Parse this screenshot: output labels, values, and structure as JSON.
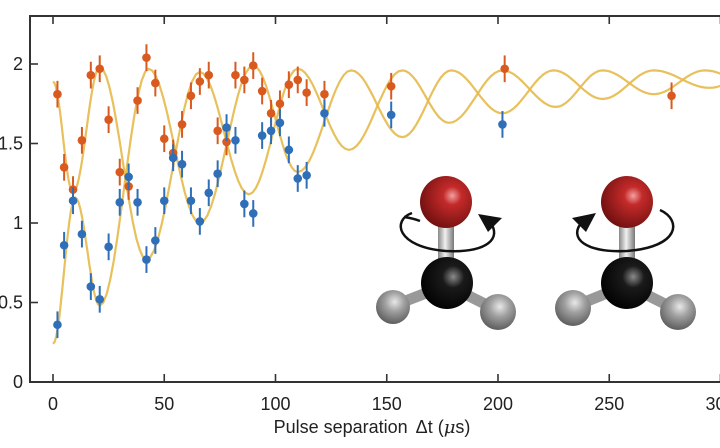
{
  "chart_data": {
    "type": "scatter",
    "title": "",
    "xlabel_main": "Pulse separation",
    "xlabel_symbol": "Δt (",
    "xlabel_mu": "μ",
    "xlabel_unit": "s)",
    "ylabel": "",
    "xlim": [
      -10,
      300
    ],
    "ylim": [
      0,
      2.3
    ],
    "grid": false,
    "xticks": [
      0,
      50,
      100,
      150,
      200,
      250,
      300
    ],
    "xtick_labels": [
      "0",
      "50",
      "100",
      "150",
      "200",
      "250",
      "300"
    ],
    "yticks": [
      0,
      0.5,
      1,
      1.5,
      2
    ],
    "ytick_labels": [
      "0",
      "0.5",
      "1",
      "1.5",
      "2"
    ],
    "colors": {
      "series_orange": "#d95a1e",
      "series_blue": "#2f6fb8",
      "fit": "#e6b94a",
      "axis": "#333333"
    },
    "series": [
      {
        "color_key": "series_orange",
        "yerr": 0.06,
        "points": [
          [
            2,
            1.81
          ],
          [
            5,
            1.35
          ],
          [
            9,
            1.21
          ],
          [
            13,
            1.52
          ],
          [
            17,
            1.93
          ],
          [
            21,
            1.97
          ],
          [
            25,
            1.65
          ],
          [
            30,
            1.32
          ],
          [
            34,
            1.23
          ],
          [
            38,
            1.77
          ],
          [
            42,
            2.04
          ],
          [
            46,
            1.88
          ],
          [
            50,
            1.53
          ],
          [
            54,
            1.44
          ],
          [
            58,
            1.62
          ],
          [
            62,
            1.8
          ],
          [
            66,
            1.89
          ],
          [
            70,
            1.93
          ],
          [
            74,
            1.58
          ],
          [
            78,
            1.51
          ],
          [
            82,
            1.93
          ],
          [
            86,
            1.9
          ],
          [
            90,
            1.99
          ],
          [
            94,
            1.83
          ],
          [
            98,
            1.69
          ],
          [
            102,
            1.75
          ],
          [
            106,
            1.87
          ],
          [
            110,
            1.9
          ],
          [
            114,
            1.82
          ],
          [
            122,
            1.81
          ],
          [
            152,
            1.86
          ],
          [
            203,
            1.97
          ],
          [
            278,
            1.8
          ]
        ]
      },
      {
        "color_key": "series_blue",
        "yerr": 0.06,
        "points": [
          [
            2,
            0.36
          ],
          [
            5,
            0.86
          ],
          [
            9,
            1.14
          ],
          [
            13,
            0.93
          ],
          [
            17,
            0.6
          ],
          [
            21,
            0.52
          ],
          [
            25,
            0.85
          ],
          [
            30,
            1.13
          ],
          [
            34,
            1.29
          ],
          [
            38,
            1.13
          ],
          [
            42,
            0.77
          ],
          [
            46,
            0.89
          ],
          [
            50,
            1.14
          ],
          [
            54,
            1.41
          ],
          [
            58,
            1.37
          ],
          [
            62,
            1.14
          ],
          [
            66,
            1.01
          ],
          [
            70,
            1.19
          ],
          [
            74,
            1.31
          ],
          [
            78,
            1.6
          ],
          [
            82,
            1.52
          ],
          [
            86,
            1.12
          ],
          [
            90,
            1.06
          ],
          [
            94,
            1.55
          ],
          [
            98,
            1.58
          ],
          [
            102,
            1.63
          ],
          [
            106,
            1.46
          ],
          [
            110,
            1.28
          ],
          [
            114,
            1.3
          ],
          [
            122,
            1.69
          ],
          [
            152,
            1.68
          ],
          [
            202,
            1.62
          ]
        ]
      }
    ],
    "fit_curves": [
      {
        "color_key": "fit",
        "extrema": [
          [
            0,
            1.89
          ],
          [
            9,
            1.19
          ],
          [
            21,
            1.98
          ],
          [
            42,
            0.77
          ],
          [
            66,
            1.95
          ],
          [
            88,
            1.18
          ],
          [
            110,
            1.97
          ],
          [
            133,
            1.46
          ],
          [
            157,
            1.96
          ],
          [
            178,
            1.63
          ],
          [
            202,
            1.96
          ],
          [
            226,
            1.73
          ],
          [
            247,
            1.96
          ],
          [
            270,
            1.81
          ],
          [
            293,
            1.96
          ],
          [
            316,
            1.86
          ]
        ]
      },
      {
        "color_key": "fit",
        "extrema": [
          [
            0,
            0.24
          ],
          [
            10,
            1.16
          ],
          [
            21,
            0.48
          ],
          [
            43,
            1.97
          ],
          [
            66,
            1.0
          ],
          [
            90,
            1.99
          ],
          [
            110,
            1.32
          ],
          [
            134,
            1.96
          ],
          [
            157,
            1.54
          ],
          [
            179,
            1.96
          ],
          [
            202,
            1.69
          ],
          [
            225,
            1.96
          ],
          [
            247,
            1.78
          ],
          [
            270,
            1.96
          ],
          [
            295,
            1.85
          ],
          [
            318,
            1.96
          ]
        ]
      }
    ]
  },
  "illustration": {
    "molecules": [
      {
        "rotation": "counterclockwise-from-above",
        "atoms": [
          "oxygen-red",
          "carbon-black",
          "hydrogen-gray",
          "hydrogen-gray"
        ]
      },
      {
        "rotation": "clockwise-from-above",
        "atoms": [
          "oxygen-red",
          "carbon-black",
          "hydrogen-gray",
          "hydrogen-gray"
        ]
      }
    ]
  }
}
